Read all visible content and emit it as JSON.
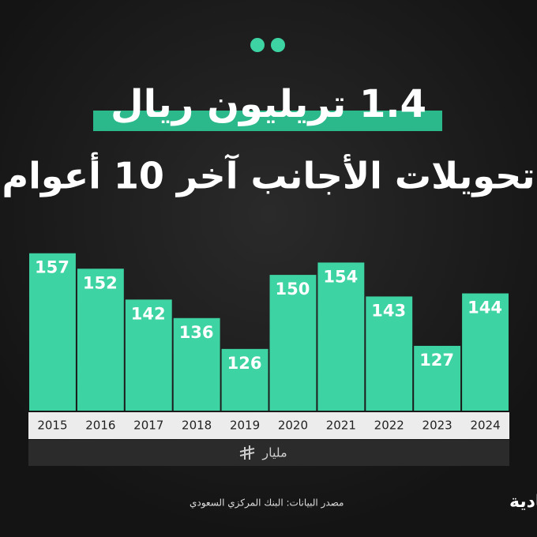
{
  "chart_data": {
    "type": "bar",
    "title": "1.4 تريليون ريال",
    "subtitle": "تحويلات الأجانب آخر 10 أعوام",
    "categories": [
      "2015",
      "2016",
      "2017",
      "2018",
      "2019",
      "2020",
      "2021",
      "2022",
      "2023",
      "2024"
    ],
    "values": [
      157,
      152,
      142,
      136,
      126,
      150,
      154,
      143,
      127,
      144
    ],
    "color": "#3dd3a2",
    "ylim": [
      106,
      160
    ],
    "unit": "مليار",
    "source": "مصدر البيانات: البنك المركزي السعودي",
    "publisher": "الاقتصادية"
  }
}
